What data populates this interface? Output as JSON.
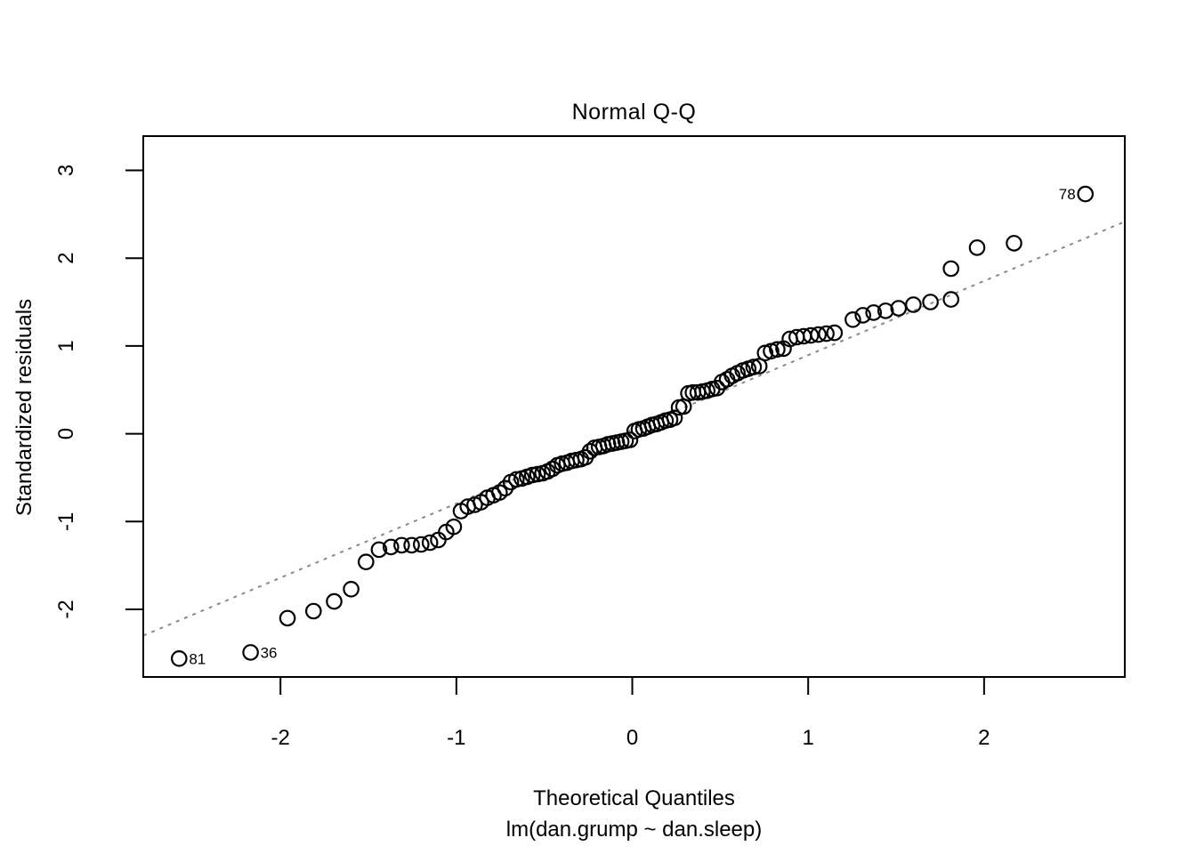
{
  "chart_data": {
    "type": "scatter",
    "subtype": "normal-qq-plot",
    "title": "Normal Q-Q",
    "xlabel": "Theoretical Quantiles",
    "xlabel2": "lm(dan.grump ~ dan.sleep)",
    "ylabel": "Standardized residuals",
    "xlim": [
      -2.78,
      2.8
    ],
    "ylim": [
      -2.77,
      3.39
    ],
    "x_ticks": [
      "-2",
      "-1",
      "0",
      "1",
      "2"
    ],
    "x_tick_values": [
      -2,
      -1,
      0,
      1,
      2
    ],
    "y_ticks": [
      "-2",
      "-1",
      "0",
      "1",
      "2",
      "3"
    ],
    "y_tick_values": [
      -2,
      -1,
      0,
      1,
      2,
      3
    ],
    "grid": false,
    "legend_position": "none",
    "point_style": {
      "shape": "open-circle",
      "stroke": "#000000",
      "radius_px": 8.2,
      "stroke_width": 2.2
    },
    "reference_line": {
      "style": "dotted",
      "color": "#8a8a8a",
      "intercept": 0.05,
      "slope": 0.845,
      "stroke_width": 2
    },
    "x": [
      -2.576,
      -2.17,
      -1.96,
      -1.812,
      -1.695,
      -1.598,
      -1.514,
      -1.44,
      -1.372,
      -1.311,
      -1.254,
      -1.2,
      -1.15,
      -1.103,
      -1.058,
      -1.015,
      -0.974,
      -0.935,
      -0.896,
      -0.86,
      -0.824,
      -0.789,
      -0.755,
      -0.722,
      -0.69,
      -0.659,
      -0.628,
      -0.598,
      -0.568,
      -0.539,
      -0.51,
      -0.482,
      -0.454,
      -0.426,
      -0.399,
      -0.372,
      -0.345,
      -0.319,
      -0.292,
      -0.266,
      -0.24,
      -0.215,
      -0.189,
      -0.164,
      -0.138,
      -0.113,
      -0.088,
      -0.063,
      -0.038,
      -0.013,
      0.013,
      0.038,
      0.063,
      0.088,
      0.113,
      0.138,
      0.164,
      0.189,
      0.215,
      0.24,
      0.266,
      0.292,
      0.319,
      0.345,
      0.372,
      0.399,
      0.426,
      0.454,
      0.482,
      0.51,
      0.539,
      0.568,
      0.598,
      0.628,
      0.659,
      0.69,
      0.722,
      0.755,
      0.789,
      0.824,
      0.86,
      0.896,
      0.935,
      0.974,
      1.015,
      1.058,
      1.103,
      1.15,
      1.254,
      1.311,
      1.372,
      1.44,
      1.514,
      1.598,
      1.695,
      1.812,
      1.812,
      1.96,
      2.17,
      2.576
    ],
    "y": [
      -2.56,
      -2.49,
      -2.1,
      -2.02,
      -1.91,
      -1.77,
      -1.46,
      -1.32,
      -1.29,
      -1.27,
      -1.27,
      -1.26,
      -1.24,
      -1.21,
      -1.12,
      -1.06,
      -0.88,
      -0.83,
      -0.81,
      -0.78,
      -0.73,
      -0.7,
      -0.67,
      -0.62,
      -0.55,
      -0.52,
      -0.51,
      -0.49,
      -0.47,
      -0.46,
      -0.45,
      -0.43,
      -0.4,
      -0.36,
      -0.34,
      -0.33,
      -0.31,
      -0.3,
      -0.29,
      -0.27,
      -0.2,
      -0.16,
      -0.15,
      -0.14,
      -0.12,
      -0.11,
      -0.1,
      -0.09,
      -0.08,
      -0.07,
      0.03,
      0.05,
      0.06,
      0.08,
      0.1,
      0.11,
      0.13,
      0.15,
      0.16,
      0.18,
      0.3,
      0.31,
      0.46,
      0.47,
      0.47,
      0.48,
      0.49,
      0.51,
      0.52,
      0.59,
      0.62,
      0.66,
      0.69,
      0.72,
      0.74,
      0.76,
      0.77,
      0.92,
      0.94,
      0.96,
      0.97,
      1.08,
      1.1,
      1.11,
      1.12,
      1.13,
      1.14,
      1.15,
      1.3,
      1.35,
      1.38,
      1.4,
      1.43,
      1.47,
      1.5,
      1.53,
      1.88,
      2.12,
      2.17,
      2.73
    ],
    "labeled_points": [
      {
        "label": "78",
        "x": 2.576,
        "y": 2.73,
        "side": "left"
      },
      {
        "label": "81",
        "x": -2.576,
        "y": -2.56,
        "side": "right"
      },
      {
        "label": "36",
        "x": -2.17,
        "y": -2.49,
        "side": "right"
      }
    ]
  }
}
